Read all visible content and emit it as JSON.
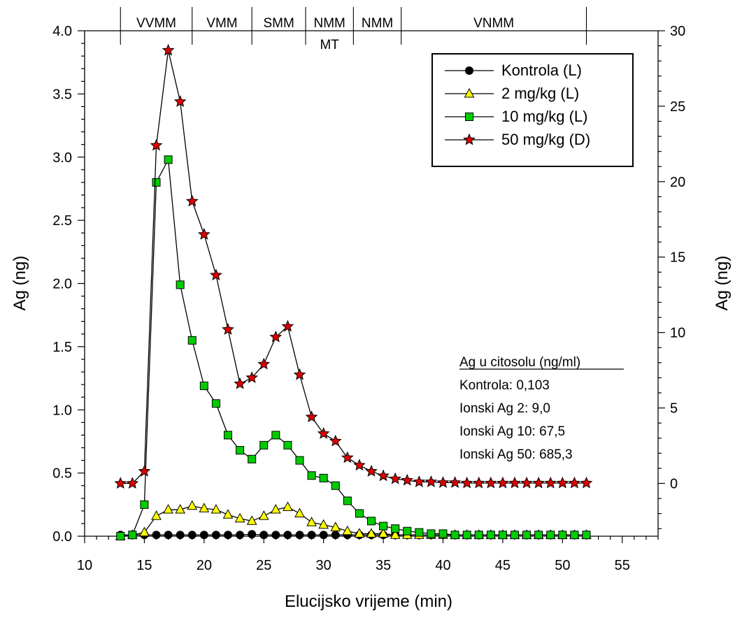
{
  "chart_data": {
    "type": "line",
    "xlabel": "Elucijsko vrijeme (min)",
    "ylabel": "Ag (ng)",
    "ylabel_right": "Ag (ng)",
    "xlim": [
      10,
      58
    ],
    "ylim": [
      0,
      4.0
    ],
    "ylim_right": [
      -3.5,
      30
    ],
    "x_ticks": [
      "10",
      "15",
      "20",
      "25",
      "30",
      "35",
      "40",
      "45",
      "50",
      "55"
    ],
    "y_ticks": [
      "0.0",
      "0.5",
      "1.0",
      "1.5",
      "2.0",
      "2.5",
      "3.0",
      "3.5",
      "4.0"
    ],
    "y_ticks_right": [
      "0",
      "5",
      "10",
      "15",
      "20",
      "25",
      "30"
    ],
    "regions": [
      {
        "label": "VVMM",
        "start": 13,
        "end": 19
      },
      {
        "label": "VMM",
        "start": 19,
        "end": 24
      },
      {
        "label": "SMM",
        "start": 24,
        "end": 28.5
      },
      {
        "label": "NMM",
        "sublabel": "MT",
        "start": 28.5,
        "end": 32.5
      },
      {
        "label": "NMM",
        "start": 32.5,
        "end": 36.5
      },
      {
        "label": "VNMM",
        "start": 36.5,
        "end": 52
      }
    ],
    "legend": {
      "placement": "top-right"
    },
    "series": [
      {
        "name": "Kontrola (L)",
        "axis": "left",
        "marker": "circle",
        "color": "#000000",
        "x": [
          13,
          14,
          15,
          16,
          17,
          18,
          19,
          20,
          21,
          22,
          23,
          24,
          25,
          26,
          27,
          28,
          29,
          30,
          31,
          32,
          33,
          34,
          35,
          36,
          37,
          38,
          39,
          40,
          41,
          42,
          43,
          44,
          45,
          46,
          47,
          48,
          49,
          50,
          51,
          52
        ],
        "values": [
          0.01,
          0.01,
          0.01,
          0.01,
          0.01,
          0.01,
          0.01,
          0.01,
          0.01,
          0.01,
          0.01,
          0.015,
          0.01,
          0.01,
          0.01,
          0.01,
          0.01,
          0.01,
          0.01,
          0.01,
          0.01,
          0.01,
          0.01,
          0.01,
          0.01,
          0.01,
          0.01,
          0.01,
          0.01,
          0.01,
          0.01,
          0.01,
          0.01,
          0.01,
          0.01,
          0.01,
          0.01,
          0.01,
          0.01,
          0.01
        ]
      },
      {
        "name": "2 mg/kg (L)",
        "axis": "left",
        "marker": "triangle",
        "color": "#ffff00",
        "x": [
          13,
          14,
          15,
          16,
          17,
          18,
          19,
          20,
          21,
          22,
          23,
          24,
          25,
          26,
          27,
          28,
          29,
          30,
          31,
          32,
          33,
          34,
          35,
          36,
          37,
          38,
          39,
          40,
          41,
          42,
          43,
          44,
          45,
          46,
          47,
          48,
          49,
          50,
          51,
          52
        ],
        "values": [
          0.0,
          0.01,
          0.03,
          0.16,
          0.21,
          0.21,
          0.24,
          0.22,
          0.21,
          0.17,
          0.14,
          0.12,
          0.16,
          0.21,
          0.23,
          0.18,
          0.11,
          0.09,
          0.07,
          0.04,
          0.02,
          0.02,
          0.02,
          0.01,
          0.01,
          0.01,
          0.01,
          0.01,
          0.01,
          0.01,
          0.01,
          0.01,
          0.01,
          0.01,
          0.01,
          0.01,
          0.01,
          0.01,
          0.01,
          0.01
        ]
      },
      {
        "name": "10 mg/kg (L)",
        "axis": "left",
        "marker": "square",
        "color": "#00cc00",
        "x": [
          13,
          14,
          15,
          16,
          17,
          18,
          19,
          20,
          21,
          22,
          23,
          24,
          25,
          26,
          27,
          28,
          29,
          30,
          31,
          32,
          33,
          34,
          35,
          36,
          37,
          38,
          39,
          40,
          41,
          42,
          43,
          44,
          45,
          46,
          47,
          48,
          49,
          50,
          51,
          52
        ],
        "values": [
          0.0,
          0.01,
          0.25,
          2.8,
          2.98,
          1.99,
          1.55,
          1.19,
          1.05,
          0.8,
          0.68,
          0.61,
          0.72,
          0.8,
          0.72,
          0.6,
          0.48,
          0.46,
          0.4,
          0.28,
          0.18,
          0.12,
          0.08,
          0.06,
          0.04,
          0.03,
          0.02,
          0.02,
          0.01,
          0.01,
          0.01,
          0.01,
          0.01,
          0.01,
          0.01,
          0.01,
          0.01,
          0.01,
          0.01,
          0.01
        ]
      },
      {
        "name": "50 mg/kg (D)",
        "axis": "right",
        "marker": "star",
        "color": "#dd0000",
        "x": [
          13,
          14,
          15,
          16,
          17,
          18,
          19,
          20,
          21,
          22,
          23,
          24,
          25,
          26,
          27,
          28,
          29,
          30,
          31,
          32,
          33,
          34,
          35,
          36,
          37,
          38,
          39,
          40,
          41,
          42,
          43,
          44,
          45,
          46,
          47,
          48,
          49,
          50,
          51,
          52
        ],
        "values": [
          0.0,
          0.0,
          0.8,
          22.4,
          28.7,
          25.3,
          18.7,
          16.5,
          13.8,
          10.2,
          6.6,
          7.0,
          7.9,
          9.7,
          10.4,
          7.2,
          4.4,
          3.3,
          2.8,
          1.7,
          1.2,
          0.8,
          0.5,
          0.3,
          0.2,
          0.1,
          0.1,
          0.05,
          0.05,
          0.02,
          0.02,
          0.02,
          0.02,
          0.02,
          0.02,
          0.02,
          0.02,
          0.02,
          0.02,
          0.02
        ]
      }
    ]
  },
  "annotation": {
    "title": "Ag u citosolu (ng/ml)",
    "lines": [
      "Kontrola: 0,103",
      "Ionski Ag 2: 9,0",
      "Ionski Ag 10: 67,5",
      "Ionski Ag 50: 685,3"
    ]
  }
}
